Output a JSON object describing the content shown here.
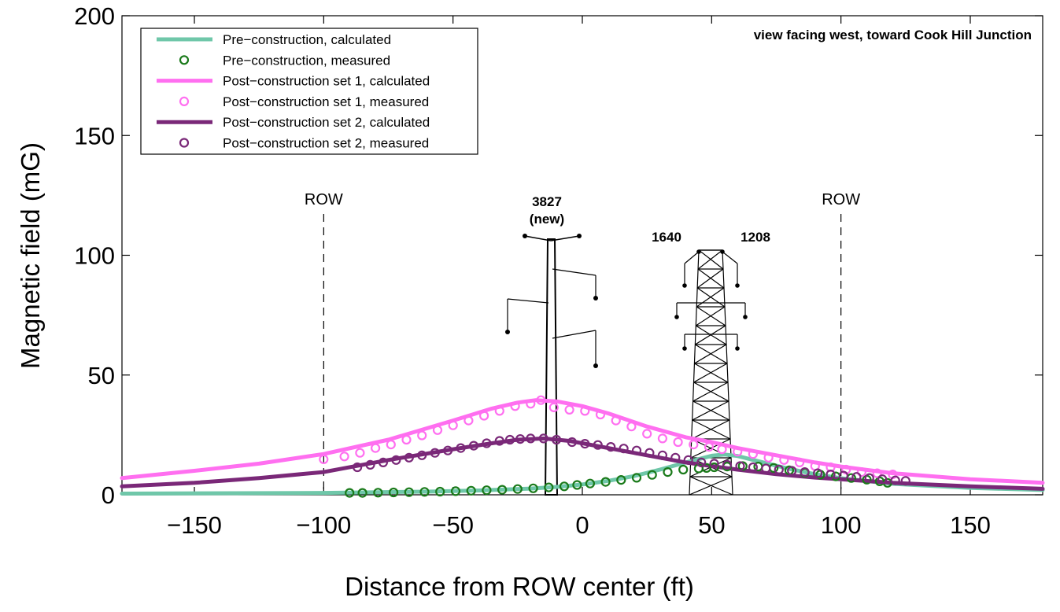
{
  "chart_data": {
    "type": "line",
    "title": "",
    "xlabel": "Distance from ROW center (ft)",
    "ylabel": "Magnetic field (mG)",
    "xlim": [
      -178,
      178
    ],
    "ylim": [
      0,
      200
    ],
    "xticks": [
      -150,
      -100,
      -50,
      0,
      50,
      100,
      150
    ],
    "xtick_labels": [
      "−150",
      "−100",
      "−50",
      "0",
      "50",
      "100",
      "150"
    ],
    "yticks": [
      0,
      50,
      100,
      150,
      200
    ],
    "ytick_labels": [
      "0",
      "50",
      "100",
      "150",
      "200"
    ],
    "grid": false,
    "legend_position": "top-left",
    "annotation": "view facing west, toward Cook Hill Junction",
    "row_markers": [
      {
        "x": -100,
        "label": "ROW"
      },
      {
        "x": 100,
        "label": "ROW"
      }
    ],
    "structures": {
      "pole_label_line1": "3827",
      "pole_label_line2": "(new)",
      "tower_left_label": "1640",
      "tower_right_label": "1208"
    },
    "series": [
      {
        "name": "Pre−construction, calculated",
        "kind": "line",
        "color": "#6fc7a9",
        "x": [
          -178,
          -100,
          -60,
          -40,
          -20,
          -10,
          0,
          10,
          20,
          30,
          40,
          50,
          55,
          60,
          70,
          80,
          90,
          100,
          120,
          150,
          178
        ],
        "y": [
          0.5,
          0.8,
          1.3,
          1.8,
          2.6,
          3.3,
          4.3,
          5.8,
          7.8,
          10.5,
          13.5,
          16.3,
          16.8,
          16.2,
          13.5,
          10.8,
          8.6,
          6.9,
          4.6,
          2.9,
          2.0
        ]
      },
      {
        "name": "Pre−construction, measured",
        "kind": "markers",
        "color": "#1a7a1a",
        "x": [
          -90,
          -85,
          -79,
          -73,
          -67,
          -61,
          -55,
          -49,
          -43,
          -37,
          -31,
          -25,
          -19,
          -13,
          -7,
          -2,
          3,
          9,
          15,
          21,
          27,
          33,
          39,
          45,
          48,
          51,
          56,
          62,
          68,
          74,
          80,
          86,
          92,
          98,
          104,
          110,
          115,
          118
        ],
        "y": [
          0.8,
          0.8,
          0.9,
          1.0,
          1.1,
          1.2,
          1.3,
          1.5,
          1.7,
          1.9,
          2.1,
          2.4,
          2.7,
          3.1,
          3.5,
          4.1,
          4.7,
          5.4,
          6.2,
          7.1,
          8.3,
          9.5,
          10.5,
          11.0,
          11.2,
          11.5,
          11.8,
          12.0,
          11.8,
          11.2,
          10.2,
          9.2,
          8.4,
          7.7,
          7.0,
          6.3,
          5.6,
          5.0
        ]
      },
      {
        "name": "Post−construction set 1, calculated",
        "kind": "line",
        "color": "#ff6ff0",
        "x": [
          -178,
          -150,
          -125,
          -100,
          -75,
          -50,
          -35,
          -25,
          -18,
          -10,
          0,
          10,
          25,
          40,
          50,
          60,
          75,
          90,
          100,
          120,
          150,
          178
        ],
        "y": [
          7,
          10,
          13,
          17,
          23,
          31,
          36,
          38.5,
          39.5,
          39,
          37,
          34,
          28.5,
          24,
          22,
          19.5,
          16.5,
          13.5,
          11.8,
          9,
          6.5,
          5
        ]
      },
      {
        "name": "Post−construction set 1, measured",
        "kind": "markers",
        "color": "#ff6ff0",
        "x": [
          -100,
          -92,
          -86,
          -80,
          -74,
          -68,
          -62,
          -56,
          -50,
          -44,
          -38,
          -32,
          -26,
          -20,
          -16,
          -11,
          -5,
          1,
          7,
          13,
          19,
          25,
          31,
          37,
          43,
          49,
          54,
          60,
          66,
          72,
          78,
          84,
          90,
          96,
          102,
          108,
          114,
          120
        ],
        "y": [
          14.8,
          16,
          17.5,
          19.5,
          21,
          23,
          24.8,
          27,
          29,
          31,
          33,
          35,
          37,
          38,
          39.5,
          36.5,
          35.5,
          35,
          33.5,
          31,
          28.5,
          25.5,
          23.5,
          22,
          21,
          20,
          19,
          18,
          17,
          15.5,
          14.5,
          13.5,
          12,
          11.5,
          10.5,
          9.5,
          9,
          8.5
        ]
      },
      {
        "name": "Post−construction set 2, calculated",
        "kind": "line",
        "color": "#7a2878",
        "x": [
          -178,
          -150,
          -125,
          -100,
          -75,
          -50,
          -35,
          -25,
          -15,
          -5,
          0,
          10,
          25,
          40,
          50,
          60,
          75,
          90,
          100,
          120,
          150,
          178
        ],
        "y": [
          3.5,
          5,
          7,
          9.5,
          14.5,
          19,
          21.5,
          23,
          23.5,
          22.5,
          21.5,
          19.5,
          16.5,
          13.5,
          12,
          10.5,
          8.6,
          7.2,
          6.5,
          5,
          3.5,
          2.5
        ]
      },
      {
        "name": "Post−construction set 2, measured",
        "kind": "markers",
        "color": "#7a2878",
        "x": [
          -87,
          -82,
          -77,
          -72,
          -67,
          -62,
          -57,
          -52,
          -47,
          -42,
          -37,
          -32,
          -28,
          -24,
          -20,
          -15,
          -10,
          -4,
          1,
          6,
          11,
          16,
          21,
          26,
          31,
          36,
          41,
          46,
          51,
          56,
          61,
          66,
          71,
          76,
          81,
          86,
          91,
          96,
          101,
          106,
          111,
          116,
          121,
          125
        ],
        "y": [
          11.5,
          12.5,
          13.5,
          14.5,
          15.5,
          16.5,
          17.5,
          18.5,
          19.5,
          20.5,
          21.5,
          22.5,
          23,
          23.3,
          23.5,
          23.5,
          23,
          22,
          21.3,
          20.8,
          20,
          19.3,
          18.5,
          17.5,
          16.5,
          15.5,
          14.5,
          13.5,
          13,
          12.5,
          12,
          11.5,
          11,
          10.5,
          10,
          9.5,
          9,
          8.5,
          8,
          7.5,
          7,
          6.5,
          6,
          5.8
        ]
      }
    ]
  }
}
